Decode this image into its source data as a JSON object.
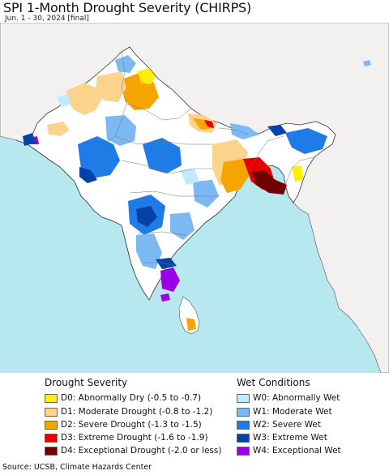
{
  "title": "SPI 1-Month Drought Severity (CHIRPS)",
  "subtitle": "Jun. 1 - 30, 2024 [final]",
  "source": "Source: UCSB, Climate Hazards Center",
  "colors": {
    "ocean": "#b7e8f0",
    "land_bg": "#f3f1ef",
    "neutral": "#ffffff",
    "D0": "#fff000",
    "D1": "#fcd38c",
    "D2": "#f6a400",
    "D3": "#e60000",
    "D4": "#730000",
    "W0": "#bfeaff",
    "W1": "#7cb8f2",
    "W2": "#1f7be6",
    "W3": "#0542a8",
    "W4": "#9900e6"
  },
  "legend": {
    "drought_title": "Drought Severity",
    "wet_title": "Wet Conditions",
    "drought": [
      {
        "code": "D0",
        "label": "D0: Abnormally Dry (-0.5 to -0.7)"
      },
      {
        "code": "D1",
        "label": "D1: Moderate Drought (-0.8 to -1.2)"
      },
      {
        "code": "D2",
        "label": "D2: Severe Drought (-1.3 to -1.5)"
      },
      {
        "code": "D3",
        "label": "D3: Extreme Drought (-1.6 to -1.9)"
      },
      {
        "code": "D4",
        "label": "D4: Exceptional Drought (-2.0 or less)"
      }
    ],
    "wet": [
      {
        "code": "W0",
        "label": "W0: Abnormally Wet"
      },
      {
        "code": "W1",
        "label": "W1: Moderate Wet"
      },
      {
        "code": "W2",
        "label": "W2: Severe Wet"
      },
      {
        "code": "W3",
        "label": "W3: Extreme Wet"
      },
      {
        "code": "W4",
        "label": "W4: Exceptional Wet"
      }
    ]
  }
}
